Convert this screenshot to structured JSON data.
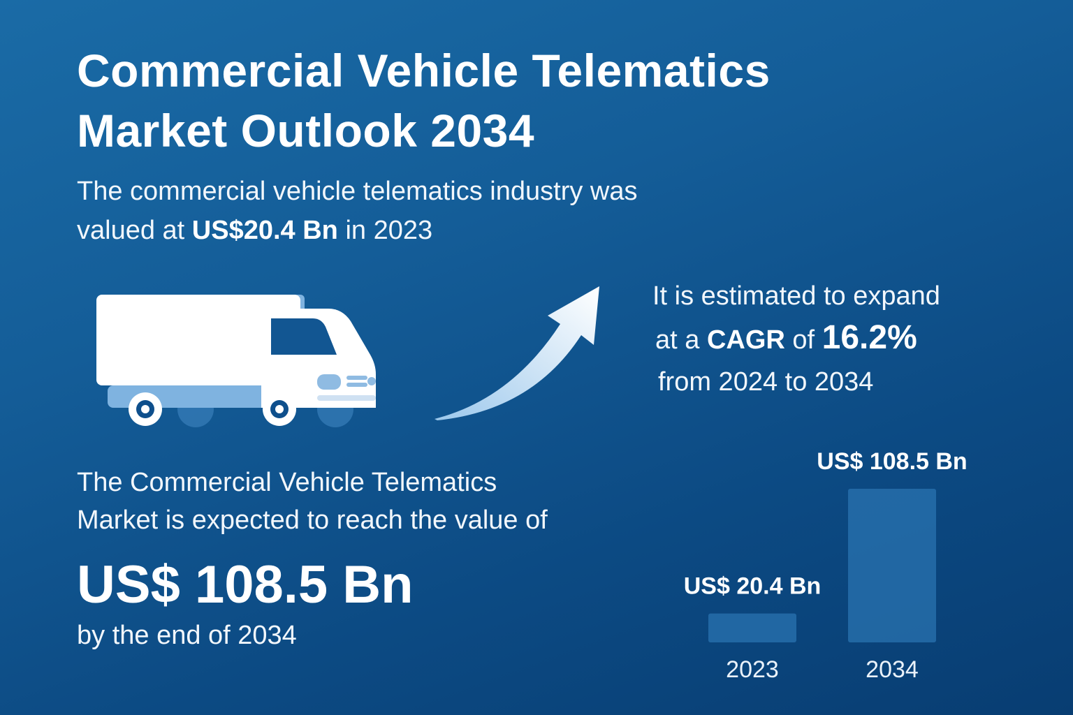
{
  "title": {
    "line1": "Commercial Vehicle Telematics",
    "line2": "Market Outlook 2034"
  },
  "intro": {
    "line1": "The commercial vehicle telematics industry was",
    "pre": "valued at ",
    "value": "US$20.4 Bn",
    "post": " in 2023"
  },
  "cagr": {
    "line1": "It is estimated to expand",
    "pre": "at a ",
    "label": "CAGR",
    "mid": " of ",
    "value": "16.2%",
    "line3": "from 2024 to 2034"
  },
  "forecast": {
    "line1": "The Commercial Vehicle Telematics",
    "line2": "Market is expected to reach the value of",
    "value": "US$ 108.5 Bn",
    "line3": "by the end of 2034"
  },
  "icons": {
    "truck": "truck-icon",
    "arrow": "growth-arrow-icon"
  },
  "colors": {
    "background_top": "#1a6ba6",
    "background_bottom": "#083d72",
    "truck_body": "#ffffff",
    "truck_accent": "#7fb3e0",
    "bar_fill": "#2a73b0"
  },
  "chart_data": {
    "type": "bar",
    "categories": [
      "2023",
      "2034"
    ],
    "values": [
      20.4,
      108.5
    ],
    "data_labels": [
      "US$ 20.4 Bn",
      "US$ 108.5 Bn"
    ],
    "unit": "US$ Bn",
    "title": "",
    "xlabel": "",
    "ylabel": "",
    "ylim": [
      0,
      108.5
    ],
    "grid": false,
    "legend": "none"
  }
}
